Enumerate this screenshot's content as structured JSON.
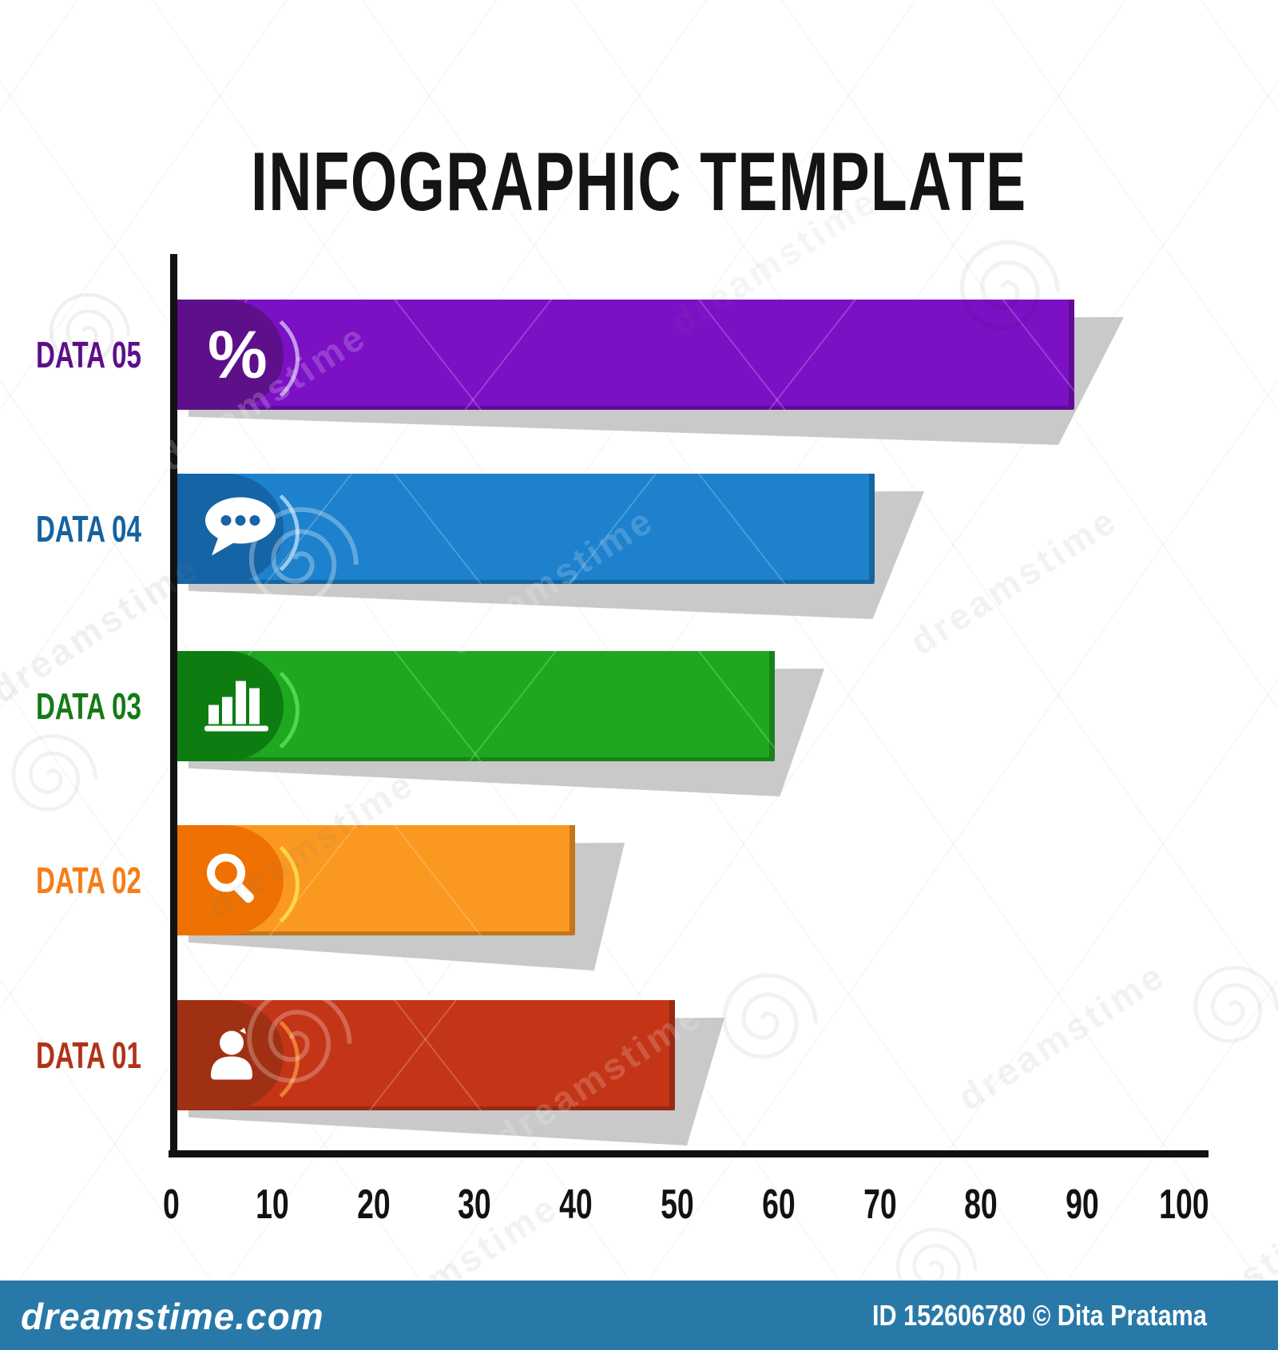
{
  "page": {
    "background": "#ffffff"
  },
  "title": "INFOGRAPHIC TEMPLATE",
  "chart_data": {
    "type": "bar",
    "orientation": "horizontal",
    "title": "INFOGRAPHIC TEMPLATE",
    "categories": [
      "DATA 05",
      "DATA 04",
      "DATA 03",
      "DATA 02",
      "DATA 01"
    ],
    "values": [
      90,
      70,
      60,
      40,
      50
    ],
    "xlim": [
      0,
      100
    ],
    "x_ticks": [
      "0",
      "10",
      "20",
      "30",
      "40",
      "50",
      "60",
      "70",
      "80",
      "90",
      "100"
    ],
    "axis_color": "#111111",
    "grid": false,
    "legend": false,
    "bars": [
      {
        "label": "DATA 05",
        "value": 90,
        "color": "#7B10C5",
        "cap_color": "#5D1089",
        "accent": "#C49AE8",
        "label_color": "#5D1089",
        "icon": "percent-icon"
      },
      {
        "label": "DATA 04",
        "value": 70,
        "color": "#1D81CD",
        "cap_color": "#1564A6",
        "accent": "#9CCBF2",
        "label_color": "#16629F",
        "icon": "chat-icon"
      },
      {
        "label": "DATA 03",
        "value": 60,
        "color": "#1EA81F",
        "cap_color": "#0E7D11",
        "accent": "#4FD84F",
        "label_color": "#147A16",
        "icon": "bar-chart-icon"
      },
      {
        "label": "DATA 02",
        "value": 40,
        "color": "#FB9820",
        "cap_color": "#EE7102",
        "accent": "#FFD84A",
        "label_color": "#F57E18",
        "icon": "search-icon"
      },
      {
        "label": "DATA 01",
        "value": 50,
        "color": "#C43517",
        "cap_color": "#A03014",
        "accent": "#EE7D35",
        "label_color": "#B03318",
        "icon": "person-icon"
      }
    ]
  },
  "watermark": {
    "text": "dreamstime",
    "footer": {
      "logo": "dreamstime.com",
      "credit": "ID 152606780 © Dita Pratama",
      "background": "#2979A8",
      "text_color": "#FFFFFF"
    }
  }
}
